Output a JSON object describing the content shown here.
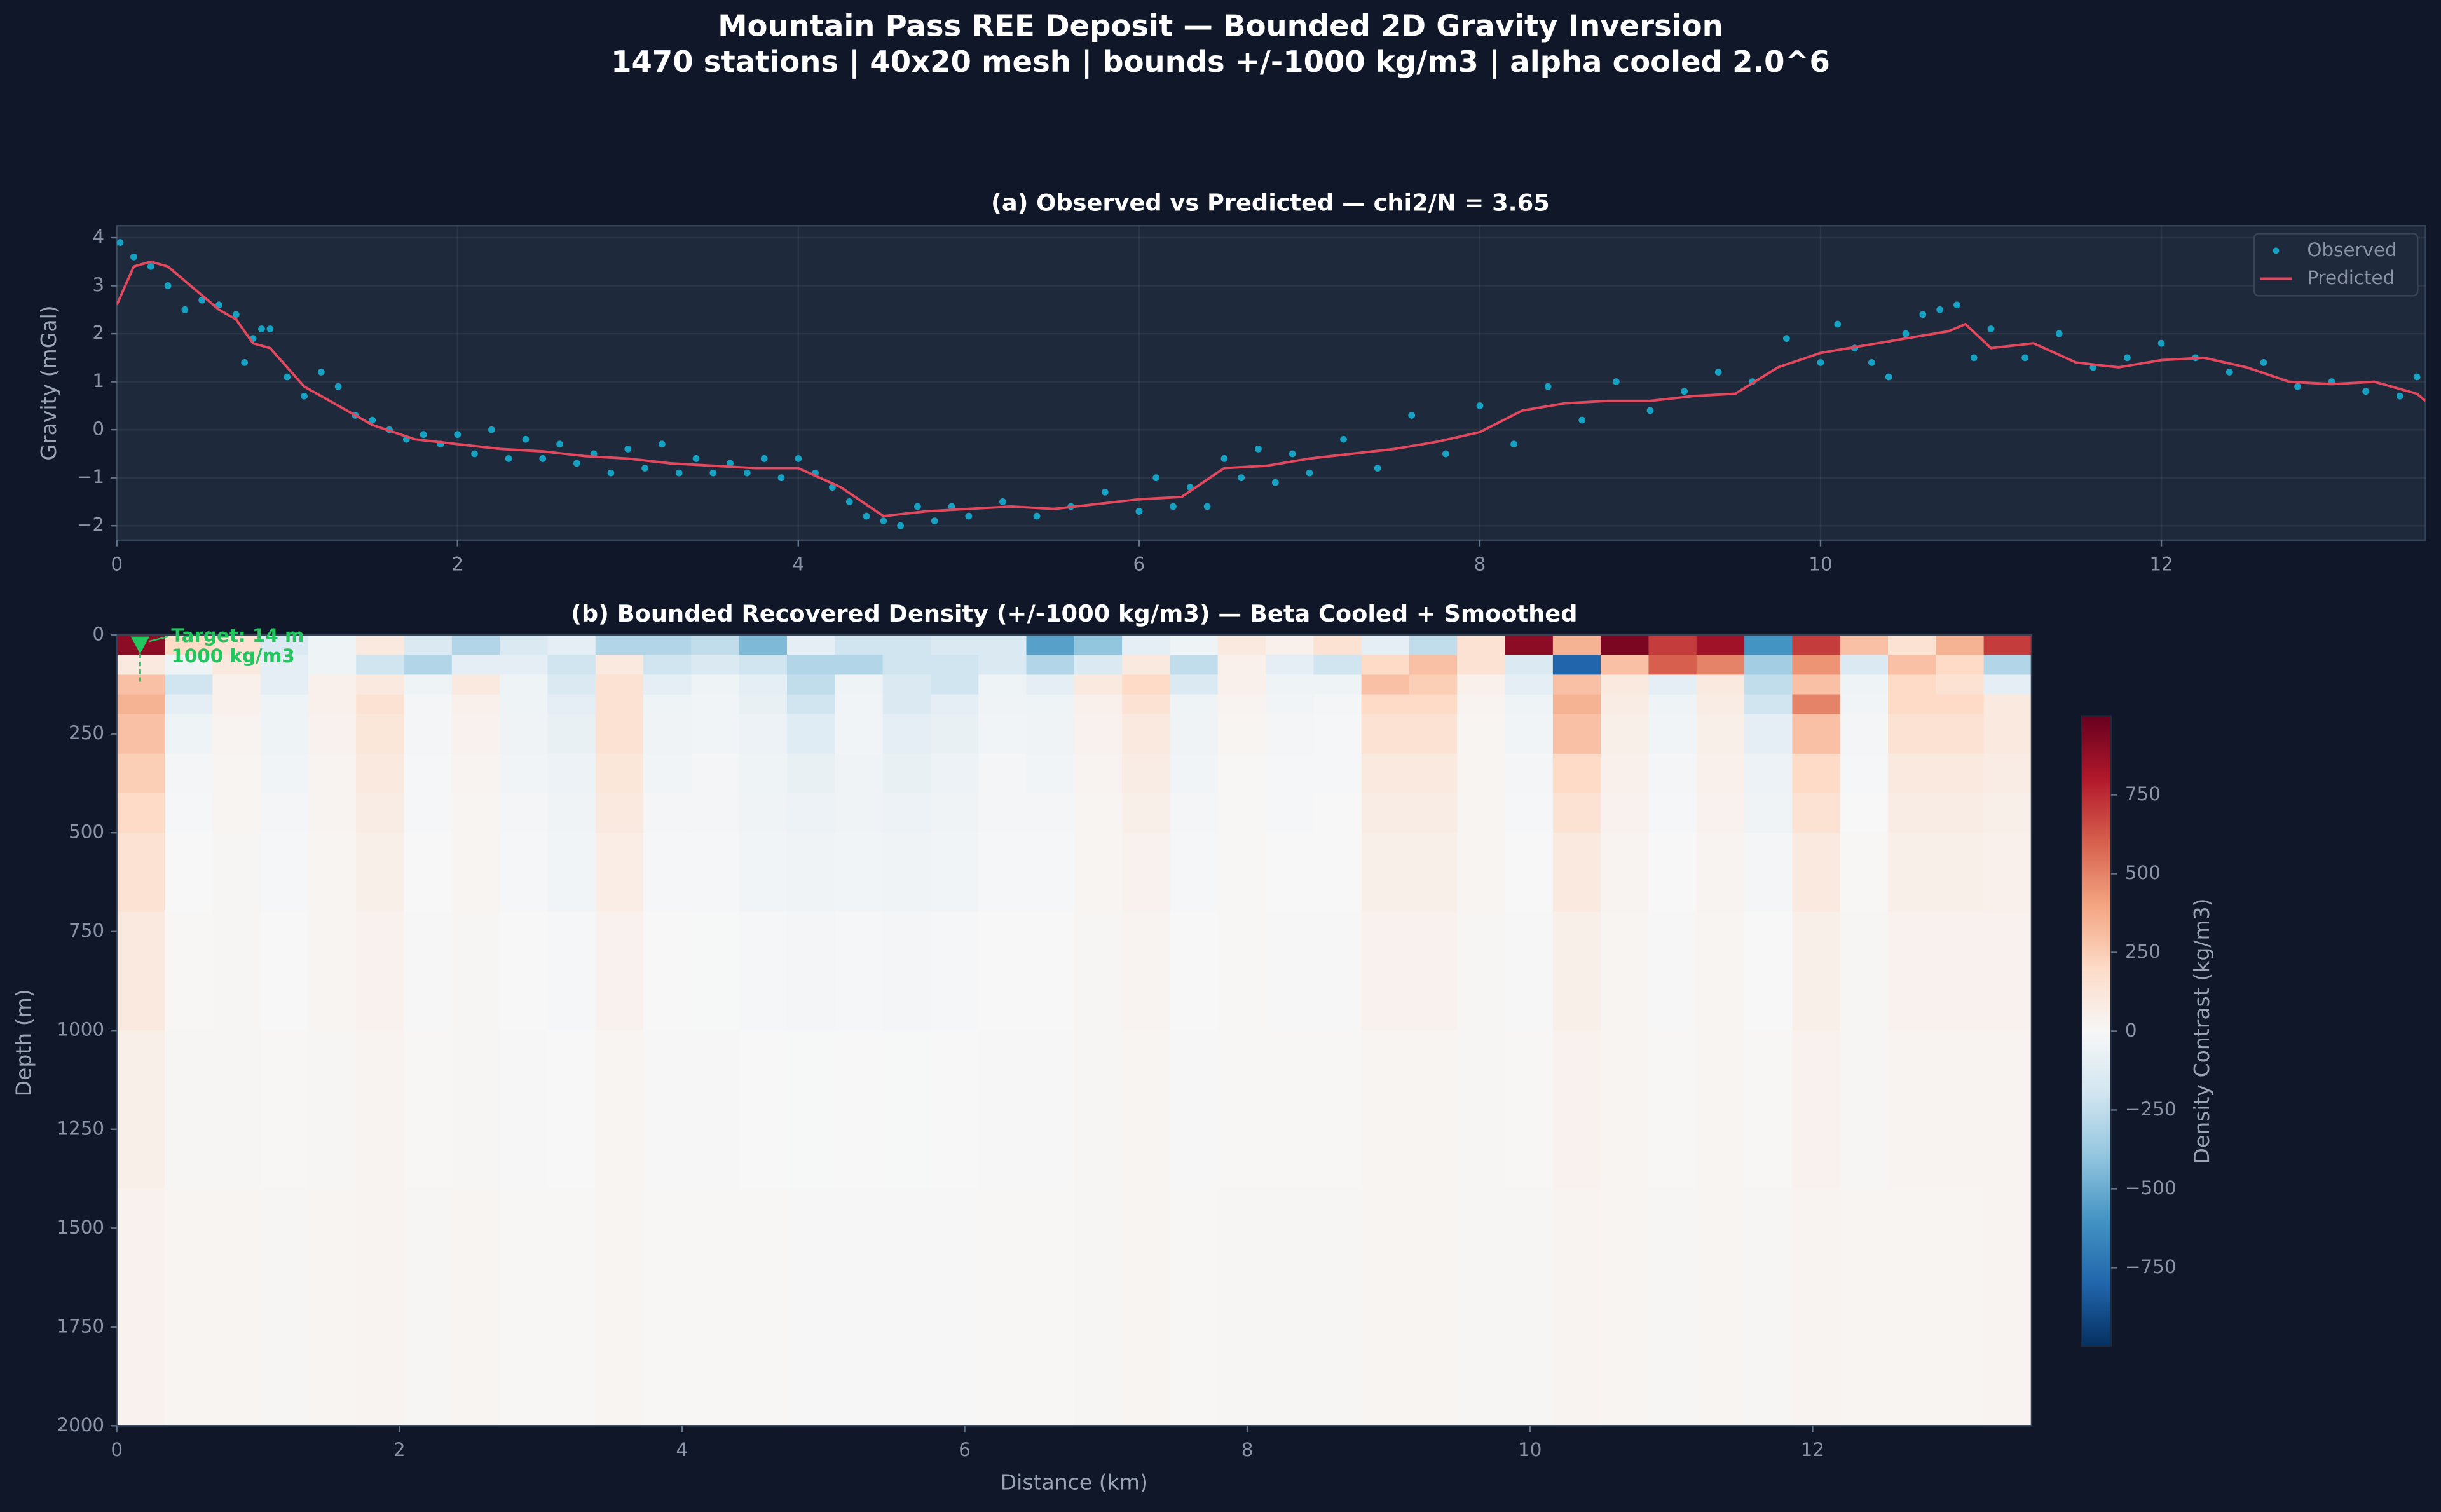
{
  "title": "Mountain Pass REE Deposit — Bounded 2D Gravity Inversion",
  "subtitle": "1470 stations | 40x20 mesh | bounds +/-1000 kg/m3 | alpha cooled 2.0^6",
  "chart_data": [
    {
      "type": "line",
      "title": "(a) Observed vs Predicted — chi2/N = 3.65",
      "ylabel": "Gravity (mGal)",
      "xlim": [
        0,
        13.55
      ],
      "ylim": [
        -2.3,
        4.25
      ],
      "xticks": [
        0,
        2,
        4,
        6,
        8,
        10,
        12
      ],
      "yticks": [
        {
          "value": -2,
          "label": "−2"
        },
        {
          "value": -1,
          "label": "−1"
        },
        0,
        1,
        2,
        3,
        4
      ],
      "grid": true,
      "legend": "upper right",
      "series": [
        {
          "name": "Observed",
          "type": "scatter",
          "color": "#17a2c4",
          "x": [
            0.02,
            0.1,
            0.2,
            0.3,
            0.4,
            0.5,
            0.6,
            0.7,
            0.75,
            0.8,
            0.85,
            0.9,
            1.0,
            1.1,
            1.2,
            1.3,
            1.4,
            1.5,
            1.6,
            1.7,
            1.8,
            1.9,
            2.0,
            2.1,
            2.2,
            2.3,
            2.4,
            2.5,
            2.6,
            2.7,
            2.8,
            2.9,
            3.0,
            3.1,
            3.2,
            3.3,
            3.4,
            3.5,
            3.6,
            3.7,
            3.8,
            3.9,
            4.0,
            4.1,
            4.2,
            4.3,
            4.4,
            4.5,
            4.6,
            4.7,
            4.8,
            4.9,
            5.0,
            5.2,
            5.4,
            5.6,
            5.8,
            6.0,
            6.1,
            6.2,
            6.3,
            6.4,
            6.5,
            6.6,
            6.7,
            6.8,
            6.9,
            7.0,
            7.2,
            7.4,
            7.6,
            7.8,
            8.0,
            8.2,
            8.4,
            8.6,
            8.8,
            9.0,
            9.2,
            9.4,
            9.6,
            9.8,
            10.0,
            10.1,
            10.2,
            10.3,
            10.4,
            10.5,
            10.6,
            10.7,
            10.8,
            10.9,
            11.0,
            11.2,
            11.4,
            11.6,
            11.8,
            12.0,
            12.2,
            12.4,
            12.6,
            12.8,
            13.0,
            13.2,
            13.4,
            13.5
          ],
          "values": [
            3.9,
            3.6,
            3.4,
            3.0,
            2.5,
            2.7,
            2.6,
            2.4,
            1.4,
            1.9,
            2.1,
            2.1,
            1.1,
            0.7,
            1.2,
            0.9,
            0.3,
            0.2,
            0.0,
            -0.2,
            -0.1,
            -0.3,
            -0.1,
            -0.5,
            0.0,
            -0.6,
            -0.2,
            -0.6,
            -0.3,
            -0.7,
            -0.5,
            -0.9,
            -0.4,
            -0.8,
            -0.3,
            -0.9,
            -0.6,
            -0.9,
            -0.7,
            -0.9,
            -0.6,
            -1.0,
            -0.6,
            -0.9,
            -1.2,
            -1.5,
            -1.8,
            -1.9,
            -2.0,
            -1.6,
            -1.9,
            -1.6,
            -1.8,
            -1.5,
            -1.8,
            -1.6,
            -1.3,
            -1.7,
            -1.0,
            -1.6,
            -1.2,
            -1.6,
            -0.6,
            -1.0,
            -0.4,
            -1.1,
            -0.5,
            -0.9,
            -0.2,
            -0.8,
            0.3,
            -0.5,
            0.5,
            -0.3,
            0.9,
            0.2,
            1.0,
            0.4,
            0.8,
            1.2,
            1.0,
            1.9,
            1.4,
            2.2,
            1.7,
            1.4,
            1.1,
            2.0,
            2.4,
            2.5,
            2.6,
            1.5,
            2.1,
            1.5,
            2.0,
            1.3,
            1.5,
            1.8,
            1.5,
            1.2,
            1.4,
            0.9,
            1.0,
            0.8,
            0.7,
            1.1
          ]
        },
        {
          "name": "Predicted",
          "type": "line",
          "color": "#e2485e",
          "x": [
            0,
            0.1,
            0.2,
            0.3,
            0.4,
            0.5,
            0.6,
            0.7,
            0.8,
            0.9,
            1.0,
            1.1,
            1.25,
            1.5,
            1.75,
            2.0,
            2.25,
            2.5,
            2.75,
            3.0,
            3.25,
            3.5,
            3.75,
            4.0,
            4.25,
            4.5,
            4.75,
            5.0,
            5.25,
            5.5,
            5.75,
            6.0,
            6.25,
            6.5,
            6.75,
            7.0,
            7.25,
            7.5,
            7.75,
            8.0,
            8.25,
            8.5,
            8.75,
            9.0,
            9.25,
            9.5,
            9.75,
            10.0,
            10.25,
            10.5,
            10.75,
            10.85,
            11.0,
            11.25,
            11.5,
            11.75,
            12.0,
            12.25,
            12.5,
            12.75,
            13.0,
            13.25,
            13.5,
            13.55
          ],
          "values": [
            2.6,
            3.4,
            3.5,
            3.4,
            3.1,
            2.8,
            2.5,
            2.3,
            1.8,
            1.7,
            1.3,
            0.9,
            0.6,
            0.1,
            -0.2,
            -0.3,
            -0.4,
            -0.45,
            -0.55,
            -0.6,
            -0.7,
            -0.75,
            -0.8,
            -0.8,
            -1.2,
            -1.8,
            -1.7,
            -1.65,
            -1.6,
            -1.65,
            -1.55,
            -1.45,
            -1.4,
            -0.8,
            -0.75,
            -0.6,
            -0.5,
            -0.4,
            -0.25,
            -0.05,
            0.4,
            0.55,
            0.6,
            0.6,
            0.7,
            0.75,
            1.3,
            1.6,
            1.75,
            1.9,
            2.05,
            2.2,
            1.7,
            1.8,
            1.4,
            1.3,
            1.45,
            1.5,
            1.3,
            1.0,
            0.95,
            1.0,
            0.75,
            0.6
          ]
        }
      ]
    },
    {
      "type": "heatmap",
      "title": "(b) Bounded Recovered Density (+/-1000 kg/m3) — Beta Cooled + Smoothed",
      "xlabel": "Distance (km)",
      "ylabel": "Depth (m)",
      "xlim": [
        0,
        13.55
      ],
      "ylim": [
        0,
        2000
      ],
      "y_inverted": true,
      "xticks": [
        0,
        2,
        4,
        6,
        8,
        10,
        12
      ],
      "yticks": [
        0,
        250,
        500,
        750,
        1000,
        1250,
        1500,
        1750,
        2000
      ],
      "depth_edges": [
        0,
        50,
        100,
        150,
        200,
        300,
        400,
        500,
        700,
        1000,
        1400,
        2000
      ],
      "z": [
        [
          900,
          200,
          150,
          -150,
          -50,
          100,
          -150,
          -300,
          -150,
          -100,
          -300,
          -300,
          -250,
          -450,
          -100,
          -200,
          -200,
          -150,
          -150,
          -550,
          -400,
          -100,
          -50,
          100,
          50,
          150,
          -100,
          -250,
          150,
          900,
          350,
          950,
          700,
          850,
          -600,
          700,
          300,
          150,
          350,
          700
        ],
        [
          100,
          -50,
          100,
          -100,
          -50,
          -200,
          -300,
          -100,
          -100,
          -200,
          100,
          -200,
          -150,
          -200,
          -300,
          -300,
          -200,
          -200,
          -150,
          -300,
          -150,
          100,
          -250,
          50,
          -100,
          -200,
          200,
          300,
          150,
          -150,
          -800,
          300,
          600,
          500,
          -350,
          450,
          -150,
          300,
          200,
          -300
        ],
        [
          300,
          -200,
          50,
          -100,
          50,
          100,
          -50,
          100,
          -50,
          -150,
          150,
          -100,
          -50,
          -100,
          -250,
          -50,
          -150,
          -200,
          -50,
          -100,
          100,
          200,
          -150,
          50,
          -50,
          -50,
          300,
          250,
          50,
          -100,
          300,
          100,
          -100,
          100,
          -250,
          300,
          -50,
          200,
          150,
          -100
        ],
        [
          350,
          -100,
          50,
          -50,
          50,
          150,
          -20,
          50,
          -50,
          -100,
          150,
          -50,
          -30,
          -80,
          -200,
          -30,
          -150,
          -100,
          -40,
          -50,
          50,
          150,
          -50,
          30,
          -30,
          -20,
          200,
          200,
          30,
          -50,
          350,
          80,
          -50,
          80,
          -200,
          500,
          -30,
          200,
          200,
          100
        ],
        [
          300,
          -50,
          30,
          -50,
          40,
          120,
          -20,
          40,
          -40,
          -80,
          150,
          -40,
          -30,
          -60,
          -120,
          -30,
          -100,
          -80,
          -30,
          -40,
          40,
          100,
          -40,
          20,
          -20,
          -10,
          150,
          150,
          20,
          -30,
          300,
          60,
          -30,
          60,
          -100,
          300,
          -20,
          150,
          150,
          100
        ],
        [
          250,
          -20,
          20,
          -30,
          30,
          100,
          -10,
          30,
          -30,
          -60,
          120,
          -30,
          -20,
          -50,
          -80,
          -40,
          -80,
          -60,
          -20,
          -30,
          30,
          80,
          -30,
          10,
          -10,
          -10,
          100,
          100,
          20,
          -20,
          200,
          50,
          -20,
          50,
          -60,
          200,
          -10,
          100,
          100,
          80
        ],
        [
          200,
          -10,
          20,
          -20,
          30,
          80,
          -10,
          20,
          -20,
          -40,
          100,
          -20,
          -20,
          -40,
          -60,
          -40,
          -60,
          -40,
          -20,
          -20,
          20,
          60,
          -20,
          10,
          -10,
          0,
          80,
          80,
          20,
          -10,
          150,
          40,
          -10,
          40,
          -40,
          150,
          0,
          80,
          80,
          60
        ],
        [
          150,
          0,
          15,
          -10,
          20,
          60,
          0,
          20,
          -10,
          -30,
          70,
          -10,
          -10,
          -30,
          -40,
          -30,
          -40,
          -30,
          -10,
          -10,
          20,
          40,
          -10,
          10,
          0,
          0,
          60,
          60,
          20,
          0,
          100,
          30,
          0,
          30,
          -20,
          100,
          10,
          60,
          60,
          50
        ],
        [
          100,
          10,
          15,
          0,
          20,
          40,
          5,
          15,
          0,
          -10,
          40,
          0,
          -5,
          -10,
          -20,
          -10,
          -20,
          -10,
          0,
          0,
          15,
          30,
          0,
          10,
          5,
          5,
          40,
          40,
          15,
          5,
          60,
          25,
          5,
          25,
          0,
          60,
          15,
          40,
          40,
          40
        ],
        [
          60,
          15,
          15,
          10,
          15,
          30,
          10,
          15,
          5,
          0,
          25,
          5,
          5,
          0,
          -5,
          0,
          -5,
          0,
          5,
          5,
          15,
          20,
          5,
          10,
          10,
          10,
          25,
          25,
          15,
          10,
          40,
          20,
          10,
          20,
          10,
          40,
          15,
          30,
          30,
          30
        ],
        [
          40,
          25,
          20,
          15,
          20,
          30,
          15,
          20,
          10,
          10,
          20,
          10,
          10,
          10,
          5,
          5,
          5,
          5,
          10,
          10,
          15,
          20,
          10,
          15,
          15,
          15,
          20,
          20,
          15,
          15,
          30,
          20,
          15,
          20,
          15,
          30,
          20,
          25,
          25,
          30
        ]
      ],
      "colormap": "RdBu_r",
      "clim": [
        -1000,
        1000
      ],
      "colorbar_label": "Density Contrast (kg/m3)",
      "colorbar_ticks": [
        {
          "value": -750,
          "label": "−750"
        },
        {
          "value": -500,
          "label": "−500"
        },
        {
          "value": -250,
          "label": "−250"
        },
        0,
        250,
        500,
        750
      ],
      "annotations": [
        "Target: 14 m",
        "1000 kg/m3"
      ]
    }
  ]
}
